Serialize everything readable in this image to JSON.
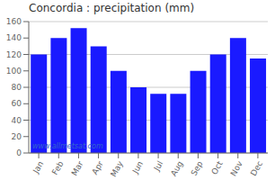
{
  "chart_data": {
    "type": "bar",
    "title": "Concordia : precipitation (mm)",
    "categories": [
      "Jan",
      "Feb",
      "Mar",
      "Apr",
      "May",
      "Jun",
      "Jul",
      "Aug",
      "Sep",
      "Oct",
      "Nov",
      "Dec"
    ],
    "values": [
      120,
      140,
      152,
      130,
      100,
      80,
      72,
      72,
      100,
      120,
      140,
      115
    ],
    "color": "#1a1aff",
    "ylim": [
      0,
      160
    ],
    "yticks": [
      0,
      20,
      40,
      60,
      80,
      100,
      120,
      140,
      160
    ],
    "grid": true,
    "annotations": [
      "www.allmetsat.com"
    ]
  }
}
